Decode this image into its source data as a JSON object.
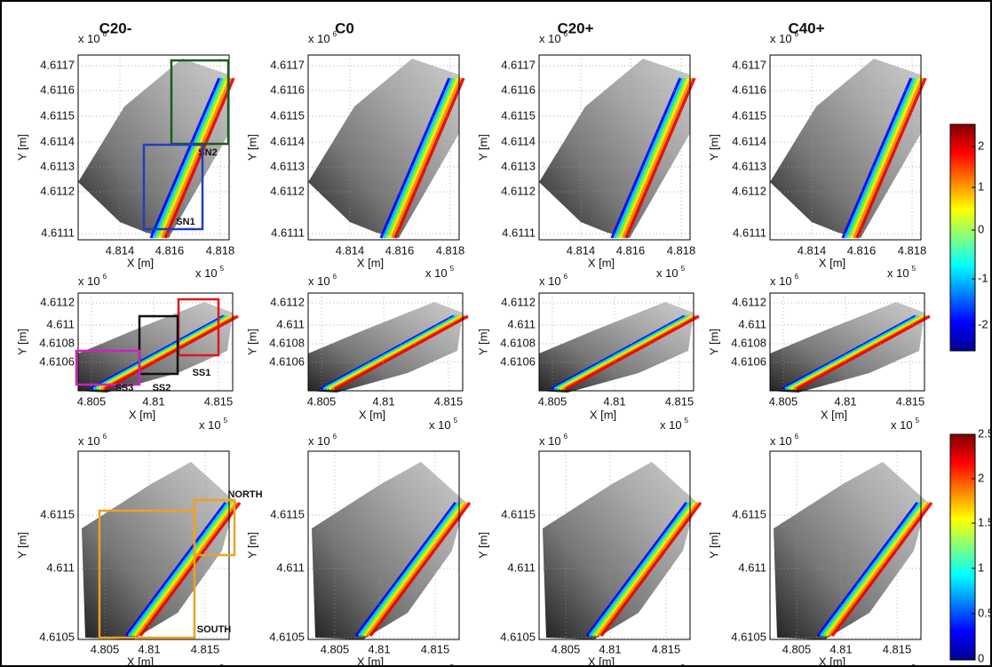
{
  "columns": [
    "C20-",
    "C0",
    "C20+",
    "C40+"
  ],
  "axis_labels": {
    "x": "X [m]",
    "y": "Y [m]"
  },
  "rows": [
    {
      "y_exponent": {
        "base": "x 10",
        "power": "6"
      },
      "x_exponent": {
        "base": "x 10",
        "power": "5"
      },
      "yticks": [
        "4.6117",
        "4.6116",
        "4.6115",
        "4.6114",
        "4.6113",
        "4.6112",
        "4.6111"
      ],
      "xticks": [
        "4.814",
        "4.816",
        "4.818"
      ]
    },
    {
      "y_exponent": {
        "base": "x 10",
        "power": "6"
      },
      "x_exponent": {
        "base": "x 10",
        "power": "5"
      },
      "yticks": [
        "4.6112",
        "4.611",
        "4.6108",
        "4.6106"
      ],
      "xticks": [
        "4.805",
        "4.81",
        "4.815"
      ]
    },
    {
      "y_exponent": {
        "base": "x 10",
        "power": "6"
      },
      "x_exponent": {
        "base": "x 10",
        "power": "5"
      },
      "yticks": [
        "4.6115",
        "4.611",
        "4.6105"
      ],
      "xticks": [
        "4.805",
        "4.81",
        "4.815"
      ]
    }
  ],
  "colorbars": [
    {
      "ticks": [
        "2",
        "1",
        "0",
        "-1",
        "-2"
      ]
    },
    {
      "ticks": [
        "2.5",
        "2",
        "1.5",
        "1",
        "0.5",
        "0"
      ]
    }
  ],
  "annotations": [
    {
      "label": "SN2",
      "color": "#1a5c1a"
    },
    {
      "label": "SN1",
      "color": "#1f3fbf"
    },
    {
      "label": "SS1",
      "color": "#e01818"
    },
    {
      "label": "SS2",
      "color": "#111111"
    },
    {
      "label": "SS3",
      "color": "#d020c0"
    },
    {
      "label": "NORTH",
      "color": "#f0a020"
    },
    {
      "label": "SOUTH",
      "color": "#f0a020"
    }
  ]
}
